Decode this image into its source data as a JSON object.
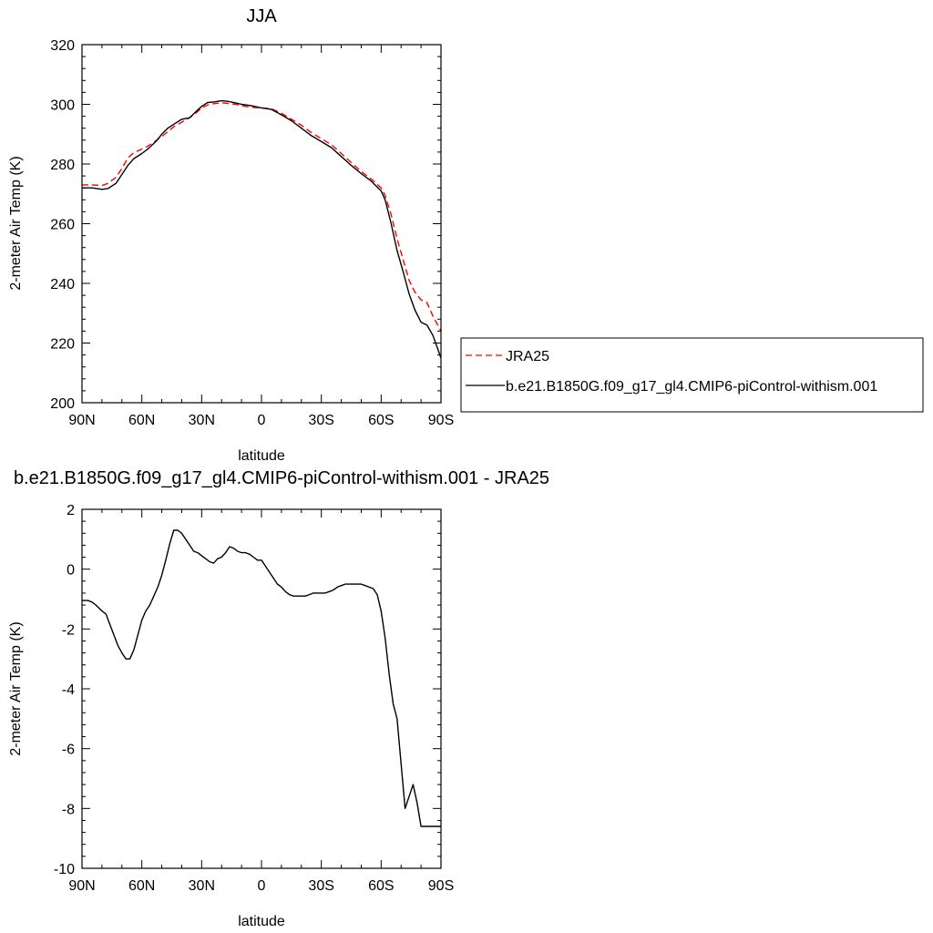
{
  "chart_data": [
    {
      "type": "line",
      "title": "JJA",
      "xlabel": "latitude",
      "ylabel": "2-meter Air Temp (K)",
      "xlim": [
        90,
        -90
      ],
      "ylim": [
        200,
        320
      ],
      "xticks": [
        90,
        60,
        30,
        0,
        -30,
        -60,
        -90
      ],
      "xtick_labels": [
        "90N",
        "60N",
        "30N",
        "0",
        "30S",
        "60S",
        "90S"
      ],
      "yticks": [
        200,
        220,
        240,
        260,
        280,
        300,
        320
      ],
      "ytick_labels": [
        "200",
        "220",
        "240",
        "260",
        "280",
        "300",
        "320"
      ],
      "grid": false,
      "legend": "right",
      "series": [
        {
          "name": "JRA25",
          "color": "#ff0000",
          "dash": "dashed",
          "x": [
            90,
            85,
            80,
            77,
            73,
            70,
            67,
            64,
            60,
            57,
            53,
            50,
            47,
            44,
            40,
            36,
            33,
            30,
            27,
            24,
            20,
            17,
            13,
            10,
            5,
            0,
            -5,
            -10,
            -15,
            -20,
            -25,
            -30,
            -35,
            -40,
            -45,
            -50,
            -55,
            -60,
            -62,
            -65,
            -68,
            -71,
            -74,
            -77,
            -80,
            -83,
            -86,
            -90
          ],
          "y": [
            273,
            273,
            272.8,
            273.5,
            275.5,
            278.5,
            282,
            283.8,
            285,
            286,
            287.8,
            289.2,
            290.8,
            292.5,
            294,
            295.5,
            297,
            298.8,
            299.8,
            300.2,
            300.5,
            300.3,
            300,
            299.5,
            299,
            298.8,
            298.5,
            297,
            295,
            293,
            290.5,
            288.5,
            286.5,
            283.5,
            280.5,
            277.5,
            275,
            272,
            269.5,
            263,
            255,
            248,
            241,
            237,
            234.5,
            233.5,
            229,
            224
          ]
        },
        {
          "name": "b.e21.B1850G.f09_g17_gl4.CMIP6-piControl-withism.001",
          "color": "#000000",
          "dash": "solid",
          "x": [
            90,
            85,
            80,
            77,
            73,
            70,
            67,
            64,
            60,
            57,
            53,
            50,
            47,
            44,
            40,
            36,
            33,
            30,
            27,
            24,
            20,
            17,
            13,
            10,
            5,
            0,
            -5,
            -10,
            -15,
            -20,
            -25,
            -30,
            -35,
            -40,
            -45,
            -50,
            -55,
            -60,
            -62,
            -65,
            -68,
            -71,
            -74,
            -77,
            -80,
            -83,
            -86,
            -90
          ],
          "y": [
            272,
            272,
            271.5,
            271.8,
            273.5,
            276.5,
            279.5,
            281.8,
            283.5,
            285,
            287.5,
            290,
            292,
            293.3,
            295,
            295.5,
            297.5,
            299.3,
            300.6,
            300.8,
            301.2,
            301,
            300.5,
            300,
            299.5,
            298.8,
            298.3,
            296.5,
            294.5,
            292,
            289.5,
            287.5,
            285.5,
            282.5,
            279.5,
            276.8,
            274.3,
            271,
            268,
            260,
            251,
            244,
            236.5,
            231,
            227,
            226,
            222.5,
            215
          ]
        }
      ]
    },
    {
      "type": "line",
      "title": "b.e21.B1850G.f09_g17_gl4.CMIP6-piControl-withism.001 - JRA25",
      "xlabel": "latitude",
      "ylabel": "2-meter Air Temp (K)",
      "xlim": [
        90,
        -90
      ],
      "ylim": [
        -10,
        2
      ],
      "xticks": [
        90,
        60,
        30,
        0,
        -30,
        -60,
        -90
      ],
      "xtick_labels": [
        "90N",
        "60N",
        "30N",
        "0",
        "30S",
        "60S",
        "90S"
      ],
      "yticks": [
        -10,
        -8,
        -6,
        -4,
        -2,
        0,
        2
      ],
      "ytick_labels": [
        "-10",
        "-8",
        "-6",
        "-4",
        "-2",
        "0",
        "2"
      ],
      "grid": false,
      "legend": "none",
      "series": [
        {
          "color": "#000000",
          "dash": "solid",
          "x": [
            90,
            87,
            85,
            83,
            80,
            78,
            76,
            74,
            72,
            70,
            68,
            66,
            64,
            62,
            60,
            58,
            56,
            54,
            52,
            50,
            48,
            46,
            44,
            42,
            40,
            38,
            36,
            34,
            32,
            30,
            28,
            26,
            24,
            22,
            20,
            18,
            16,
            14,
            12,
            10,
            8,
            6,
            4,
            2,
            0,
            -2,
            -4,
            -6,
            -8,
            -10,
            -12,
            -14,
            -16,
            -18,
            -20,
            -22,
            -24,
            -26,
            -28,
            -30,
            -32,
            -34,
            -36,
            -38,
            -40,
            -42,
            -44,
            -46,
            -48,
            -50,
            -52,
            -54,
            -56,
            -58,
            -60,
            -62,
            -64,
            -66,
            -68,
            -70,
            -72,
            -74,
            -76,
            -78,
            -80,
            -82,
            -84,
            -86,
            -88,
            -90
          ],
          "y": [
            -1.05,
            -1.05,
            -1.1,
            -1.2,
            -1.4,
            -1.5,
            -1.85,
            -2.2,
            -2.55,
            -2.8,
            -3.0,
            -3.0,
            -2.7,
            -2.2,
            -1.7,
            -1.4,
            -1.2,
            -0.9,
            -0.6,
            -0.2,
            0.3,
            0.85,
            1.3,
            1.3,
            1.2,
            1.0,
            0.8,
            0.6,
            0.55,
            0.45,
            0.35,
            0.25,
            0.2,
            0.35,
            0.4,
            0.55,
            0.75,
            0.7,
            0.6,
            0.55,
            0.55,
            0.5,
            0.4,
            0.3,
            0.3,
            0.1,
            -0.1,
            -0.3,
            -0.5,
            -0.6,
            -0.75,
            -0.85,
            -0.9,
            -0.9,
            -0.9,
            -0.9,
            -0.85,
            -0.8,
            -0.8,
            -0.8,
            -0.8,
            -0.75,
            -0.7,
            -0.6,
            -0.55,
            -0.5,
            -0.5,
            -0.5,
            -0.5,
            -0.5,
            -0.55,
            -0.6,
            -0.65,
            -0.85,
            -1.4,
            -2.3,
            -3.5,
            -4.5,
            -5.0,
            -6.5,
            -8.0,
            -7.6,
            -7.2,
            -7.8,
            -8.6,
            -8.6,
            -8.6,
            -8.6,
            -8.6,
            -8.6
          ]
        }
      ]
    }
  ]
}
